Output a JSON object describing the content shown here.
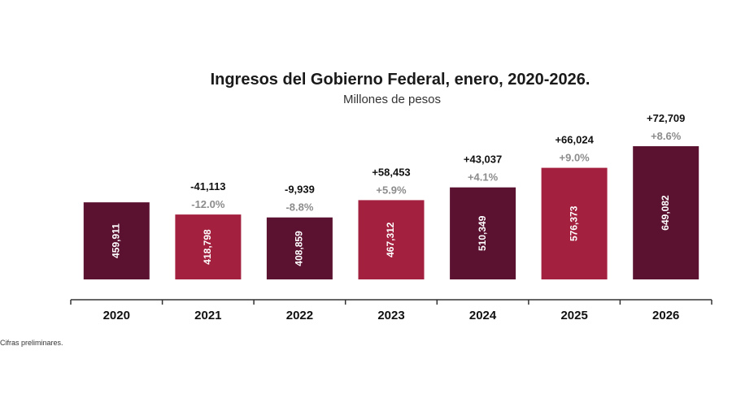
{
  "chart_data": {
    "type": "bar",
    "title": "Ingresos del Gobierno Federal, enero, 2020-2026.",
    "subtitle": "Millones de pesos",
    "categories": [
      "2020",
      "2021",
      "2022",
      "2023",
      "2024",
      "2025",
      "2026"
    ],
    "values": [
      459911,
      418798,
      408859,
      467312,
      510349,
      576373,
      649082
    ],
    "value_labels": [
      "459,911",
      "418,798",
      "408,859",
      "467,312",
      "510,349",
      "576,373",
      "649,082"
    ],
    "change_abs": [
      "",
      "-41,113",
      "-9,939",
      "+58,453",
      "+43,037",
      "+66,024",
      "+72,709"
    ],
    "change_pct": [
      "",
      "-12.0%",
      "-8.8%",
      "+5.9%",
      "+4.1%",
      "+9.0%",
      "+8.6%"
    ],
    "bar_colors": [
      "#5a1230",
      "#a3213f",
      "#5a1230",
      "#a3213f",
      "#5a1230",
      "#a3213f",
      "#5a1230"
    ],
    "xlabel": "",
    "ylabel": "",
    "grid": false,
    "legend": "none"
  },
  "note": "Cifras preliminares."
}
